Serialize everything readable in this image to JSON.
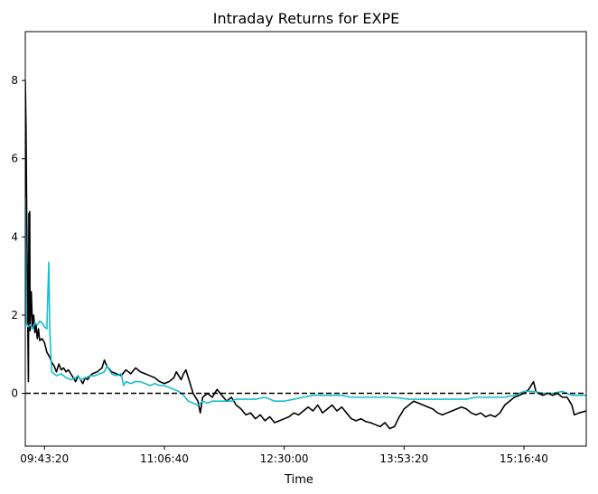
{
  "chart_data": {
    "type": "line",
    "title": "Intraday Returns for EXPE",
    "xlabel": "Time",
    "ylabel": "",
    "x_ticks": [
      "09:43:20",
      "11:06:40",
      "12:30:00",
      "13:53:20",
      "15:16:40"
    ],
    "x_tick_seconds": [
      35000,
      40000,
      45000,
      50000,
      55000
    ],
    "xlim_seconds": [
      34200,
      57600
    ],
    "y_ticks": [
      0,
      2,
      4,
      6,
      8
    ],
    "ylim": [
      -1.35,
      9.25
    ],
    "grid": false,
    "reference_line": {
      "y": 0,
      "style": "dashed",
      "color": "#000000"
    },
    "series": [
      {
        "color": "#000000",
        "points": [
          [
            34200,
            8.0
          ],
          [
            34230,
            6.8
          ],
          [
            34260,
            4.5
          ],
          [
            34300,
            2.0
          ],
          [
            34330,
            0.3
          ],
          [
            34350,
            4.6
          ],
          [
            34370,
            2.2
          ],
          [
            34385,
            4.65
          ],
          [
            34400,
            1.6
          ],
          [
            34450,
            2.6
          ],
          [
            34500,
            1.7
          ],
          [
            34550,
            2.0
          ],
          [
            34600,
            1.55
          ],
          [
            34650,
            1.75
          ],
          [
            34700,
            1.4
          ],
          [
            34750,
            1.65
          ],
          [
            34800,
            1.35
          ],
          [
            34900,
            1.4
          ],
          [
            35000,
            1.3
          ],
          [
            35100,
            1.05
          ],
          [
            35200,
            0.95
          ],
          [
            35300,
            0.8
          ],
          [
            35400,
            0.7
          ],
          [
            35500,
            0.55
          ],
          [
            35600,
            0.75
          ],
          [
            35700,
            0.6
          ],
          [
            35800,
            0.65
          ],
          [
            35900,
            0.55
          ],
          [
            36000,
            0.6
          ],
          [
            36100,
            0.5
          ],
          [
            36200,
            0.4
          ],
          [
            36300,
            0.3
          ],
          [
            36400,
            0.45
          ],
          [
            36500,
            0.35
          ],
          [
            36600,
            0.25
          ],
          [
            36700,
            0.4
          ],
          [
            36800,
            0.35
          ],
          [
            36900,
            0.45
          ],
          [
            37000,
            0.5
          ],
          [
            37200,
            0.55
          ],
          [
            37400,
            0.65
          ],
          [
            37500,
            0.85
          ],
          [
            37600,
            0.7
          ],
          [
            37800,
            0.55
          ],
          [
            38000,
            0.5
          ],
          [
            38200,
            0.45
          ],
          [
            38400,
            0.6
          ],
          [
            38600,
            0.5
          ],
          [
            38800,
            0.65
          ],
          [
            39000,
            0.55
          ],
          [
            39200,
            0.5
          ],
          [
            39400,
            0.45
          ],
          [
            39600,
            0.4
          ],
          [
            39800,
            0.3
          ],
          [
            40000,
            0.25
          ],
          [
            40200,
            0.3
          ],
          [
            40400,
            0.4
          ],
          [
            40500,
            0.55
          ],
          [
            40600,
            0.45
          ],
          [
            40700,
            0.35
          ],
          [
            40800,
            0.5
          ],
          [
            40900,
            0.6
          ],
          [
            41000,
            0.4
          ],
          [
            41100,
            0.2
          ],
          [
            41200,
            0.0
          ],
          [
            41400,
            -0.2
          ],
          [
            41500,
            -0.5
          ],
          [
            41600,
            -0.1
          ],
          [
            41800,
            0.0
          ],
          [
            42000,
            -0.1
          ],
          [
            42200,
            0.1
          ],
          [
            42400,
            -0.05
          ],
          [
            42600,
            -0.2
          ],
          [
            42800,
            -0.1
          ],
          [
            43000,
            -0.3
          ],
          [
            43200,
            -0.4
          ],
          [
            43400,
            -0.55
          ],
          [
            43600,
            -0.5
          ],
          [
            43800,
            -0.65
          ],
          [
            44000,
            -0.55
          ],
          [
            44200,
            -0.7
          ],
          [
            44400,
            -0.6
          ],
          [
            44600,
            -0.75
          ],
          [
            44800,
            -0.7
          ],
          [
            45000,
            -0.65
          ],
          [
            45200,
            -0.6
          ],
          [
            45400,
            -0.5
          ],
          [
            45600,
            -0.55
          ],
          [
            45800,
            -0.45
          ],
          [
            46000,
            -0.35
          ],
          [
            46200,
            -0.45
          ],
          [
            46400,
            -0.3
          ],
          [
            46600,
            -0.5
          ],
          [
            46800,
            -0.4
          ],
          [
            47000,
            -0.3
          ],
          [
            47200,
            -0.45
          ],
          [
            47400,
            -0.35
          ],
          [
            47600,
            -0.5
          ],
          [
            47800,
            -0.65
          ],
          [
            48000,
            -0.7
          ],
          [
            48200,
            -0.65
          ],
          [
            48400,
            -0.72
          ],
          [
            48600,
            -0.75
          ],
          [
            48800,
            -0.8
          ],
          [
            49000,
            -0.85
          ],
          [
            49200,
            -0.75
          ],
          [
            49400,
            -0.9
          ],
          [
            49600,
            -0.85
          ],
          [
            49800,
            -0.6
          ],
          [
            50000,
            -0.4
          ],
          [
            50200,
            -0.3
          ],
          [
            50400,
            -0.2
          ],
          [
            50600,
            -0.25
          ],
          [
            50800,
            -0.3
          ],
          [
            51000,
            -0.35
          ],
          [
            51200,
            -0.4
          ],
          [
            51400,
            -0.5
          ],
          [
            51600,
            -0.55
          ],
          [
            51800,
            -0.5
          ],
          [
            52000,
            -0.45
          ],
          [
            52200,
            -0.4
          ],
          [
            52400,
            -0.35
          ],
          [
            52600,
            -0.4
          ],
          [
            52800,
            -0.5
          ],
          [
            53000,
            -0.55
          ],
          [
            53200,
            -0.5
          ],
          [
            53400,
            -0.6
          ],
          [
            53600,
            -0.55
          ],
          [
            53800,
            -0.6
          ],
          [
            54000,
            -0.5
          ],
          [
            54200,
            -0.3
          ],
          [
            54400,
            -0.2
          ],
          [
            54600,
            -0.1
          ],
          [
            54800,
            -0.05
          ],
          [
            55000,
            0.0
          ],
          [
            55200,
            0.1
          ],
          [
            55400,
            0.3
          ],
          [
            55500,
            0.05
          ],
          [
            55600,
            0.0
          ],
          [
            55800,
            -0.05
          ],
          [
            56000,
            0.0
          ],
          [
            56200,
            -0.05
          ],
          [
            56400,
            0.0
          ],
          [
            56600,
            -0.1
          ],
          [
            56800,
            -0.1
          ],
          [
            57000,
            -0.3
          ],
          [
            57100,
            -0.55
          ],
          [
            57300,
            -0.5
          ],
          [
            57600,
            -0.45
          ]
        ]
      },
      {
        "color": "#17becf",
        "points": [
          [
            34200,
            5.0
          ],
          [
            34250,
            1.8
          ],
          [
            34300,
            1.7
          ],
          [
            34400,
            1.75
          ],
          [
            34500,
            1.65
          ],
          [
            34600,
            1.8
          ],
          [
            34700,
            1.75
          ],
          [
            34800,
            1.85
          ],
          [
            34900,
            1.8
          ],
          [
            35000,
            1.7
          ],
          [
            35100,
            1.65
          ],
          [
            35180,
            3.35
          ],
          [
            35220,
            1.65
          ],
          [
            35300,
            0.55
          ],
          [
            35400,
            0.5
          ],
          [
            35500,
            0.45
          ],
          [
            35700,
            0.5
          ],
          [
            35900,
            0.4
          ],
          [
            36100,
            0.35
          ],
          [
            36300,
            0.4
          ],
          [
            36400,
            0.45
          ],
          [
            36500,
            0.35
          ],
          [
            36700,
            0.4
          ],
          [
            36900,
            0.45
          ],
          [
            37100,
            0.45
          ],
          [
            37300,
            0.5
          ],
          [
            37500,
            0.55
          ],
          [
            37600,
            0.7
          ],
          [
            37700,
            0.6
          ],
          [
            37800,
            0.5
          ],
          [
            38000,
            0.45
          ],
          [
            38200,
            0.5
          ],
          [
            38300,
            0.2
          ],
          [
            38400,
            0.3
          ],
          [
            38600,
            0.25
          ],
          [
            38800,
            0.3
          ],
          [
            39000,
            0.3
          ],
          [
            39200,
            0.25
          ],
          [
            39400,
            0.2
          ],
          [
            39600,
            0.25
          ],
          [
            39800,
            0.2
          ],
          [
            40000,
            0.2
          ],
          [
            40200,
            0.15
          ],
          [
            40400,
            0.1
          ],
          [
            40600,
            0.05
          ],
          [
            40800,
            -0.05
          ],
          [
            41000,
            -0.2
          ],
          [
            41200,
            -0.25
          ],
          [
            41400,
            -0.3
          ],
          [
            41600,
            -0.2
          ],
          [
            41800,
            -0.25
          ],
          [
            42000,
            -0.2
          ],
          [
            42400,
            -0.2
          ],
          [
            42800,
            -0.2
          ],
          [
            43000,
            -0.15
          ],
          [
            43400,
            -0.15
          ],
          [
            43800,
            -0.15
          ],
          [
            44200,
            -0.1
          ],
          [
            44600,
            -0.2
          ],
          [
            45000,
            -0.2
          ],
          [
            45400,
            -0.15
          ],
          [
            45800,
            -0.1
          ],
          [
            46200,
            -0.05
          ],
          [
            46600,
            -0.05
          ],
          [
            47000,
            -0.05
          ],
          [
            47400,
            -0.05
          ],
          [
            47800,
            -0.1
          ],
          [
            48200,
            -0.1
          ],
          [
            48600,
            -0.1
          ],
          [
            49000,
            -0.1
          ],
          [
            49400,
            -0.1
          ],
          [
            49800,
            -0.12
          ],
          [
            50200,
            -0.15
          ],
          [
            50600,
            -0.15
          ],
          [
            51000,
            -0.15
          ],
          [
            51400,
            -0.15
          ],
          [
            51800,
            -0.15
          ],
          [
            52200,
            -0.15
          ],
          [
            52600,
            -0.15
          ],
          [
            53000,
            -0.1
          ],
          [
            53400,
            -0.1
          ],
          [
            53800,
            -0.1
          ],
          [
            54200,
            -0.1
          ],
          [
            54600,
            -0.05
          ],
          [
            55000,
            0.05
          ],
          [
            55400,
            0.05
          ],
          [
            55800,
            0.0
          ],
          [
            56200,
            0.0
          ],
          [
            56600,
            0.05
          ],
          [
            56800,
            0.0
          ],
          [
            57000,
            -0.05
          ],
          [
            57600,
            -0.05
          ]
        ]
      }
    ]
  }
}
